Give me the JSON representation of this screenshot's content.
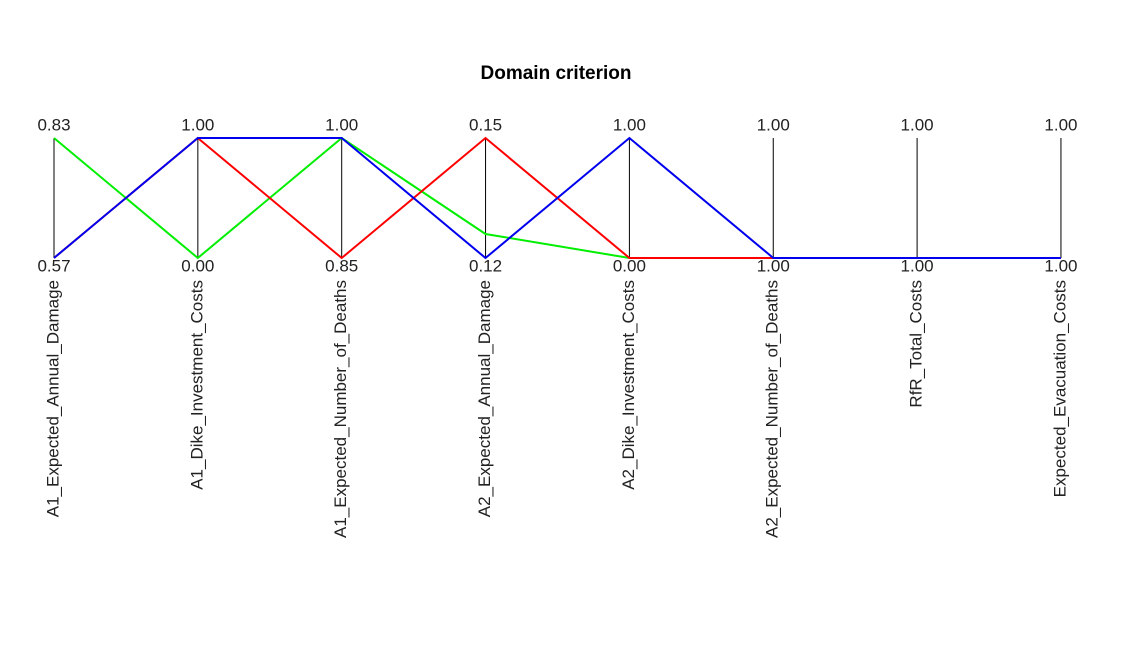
{
  "chart_data": {
    "type": "parallel",
    "title": "Domain criterion",
    "dimensions": [
      {
        "label": "A1_Expected_Annual_Damage",
        "range": [
          0.57,
          0.83
        ],
        "ticks": [
          {
            "value": 0.57,
            "label": "0.57"
          },
          {
            "value": 0.83,
            "label": "0.83"
          }
        ]
      },
      {
        "label": "A1_Dike_Investment_Costs",
        "range": [
          0,
          1
        ],
        "ticks": [
          {
            "value": 0,
            "label": "0.00"
          },
          {
            "value": 1,
            "label": "1.00"
          }
        ]
      },
      {
        "label": "A1_Expected_Number_of_Deaths",
        "range": [
          0.85,
          1
        ],
        "ticks": [
          {
            "value": 0.85,
            "label": "0.85"
          },
          {
            "value": 1,
            "label": "1.00"
          }
        ]
      },
      {
        "label": "A2_Expected_Annual_Damage",
        "range": [
          0.12,
          0.15
        ],
        "ticks": [
          {
            "value": 0.12,
            "label": "0.12"
          },
          {
            "value": 0.15,
            "label": "0.15"
          }
        ]
      },
      {
        "label": "A2_Dike_Investment_Costs",
        "range": [
          0,
          1
        ],
        "ticks": [
          {
            "value": 0,
            "label": "0.00"
          },
          {
            "value": 1,
            "label": "1.00"
          }
        ]
      },
      {
        "label": "A2_Expected_Number_of_Deaths",
        "range": [
          1,
          1
        ],
        "ticks": [
          {
            "value": 1,
            "label": "1.00"
          },
          {
            "value": 1,
            "label": "1.00"
          }
        ]
      },
      {
        "label": "RfR_Total_Costs",
        "range": [
          1,
          1
        ],
        "ticks": [
          {
            "value": 1,
            "label": "1.00"
          },
          {
            "value": 1,
            "label": "1.00"
          }
        ]
      },
      {
        "label": "Expected_Evacuation_Costs",
        "range": [
          1,
          1
        ],
        "ticks": [
          {
            "value": 1,
            "label": "1.00"
          },
          {
            "value": 1,
            "label": "1.00"
          }
        ]
      }
    ],
    "series": [
      {
        "color": "#00ee00",
        "values": [
          0.83,
          0,
          1,
          0.126,
          0,
          1,
          1,
          1
        ]
      },
      {
        "color": "#ff0000",
        "values": [
          0.57,
          1,
          0.85,
          0.15,
          0,
          1,
          1,
          1
        ]
      },
      {
        "color": "#0000ee",
        "values": [
          0.57,
          1,
          1,
          0.12,
          1,
          1,
          1,
          1
        ]
      }
    ]
  }
}
